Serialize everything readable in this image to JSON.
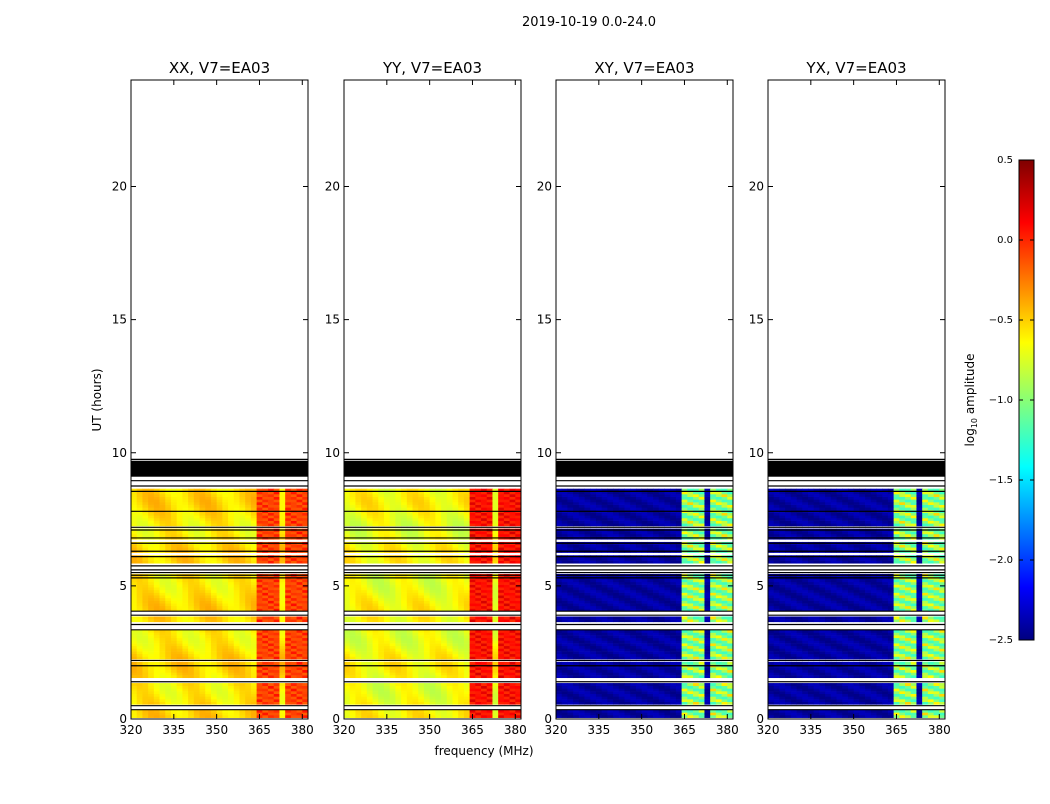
{
  "chart_data": {
    "type": "heatmap",
    "suptitle": "2019-10-19 0.0-24.0",
    "xlabel": "frequency (MHz)",
    "ylabel": "UT (hours)",
    "xlim": [
      320,
      382
    ],
    "ylim": [
      0,
      24
    ],
    "x_ticks": [
      320,
      335,
      350,
      365,
      380
    ],
    "y_ticks": [
      0,
      5,
      10,
      15,
      20
    ],
    "panels": [
      {
        "title": "XX, V7=EA03",
        "kind": "parallel",
        "base": -0.55,
        "rfi_peak": 0.1
      },
      {
        "title": "YY, V7=EA03",
        "kind": "parallel",
        "base": -0.65,
        "rfi_peak": 0.25
      },
      {
        "title": "XY, V7=EA03",
        "kind": "cross",
        "base": -2.4,
        "rfi_peak": -0.5
      },
      {
        "title": "YX, V7=EA03",
        "kind": "cross",
        "base": -2.4,
        "rfi_peak": -0.5
      }
    ],
    "data_time_range_hours": [
      0.0,
      9.7
    ],
    "rfi_channels_mhz": [
      [
        363,
        367
      ],
      [
        368,
        372
      ],
      [
        373,
        377
      ],
      [
        378,
        381
      ]
    ],
    "colorbar": {
      "label": "log10 amplitude",
      "vmin": -2.5,
      "vmax": 0.5,
      "ticks": [
        0.5,
        0.0,
        -0.5,
        -1.0,
        -1.5,
        -2.0,
        -2.5
      ],
      "tick_labels": [
        "0.5",
        "0.0",
        "−0.5",
        "−1.0",
        "−1.5",
        "−2.0",
        "−2.5"
      ]
    }
  }
}
